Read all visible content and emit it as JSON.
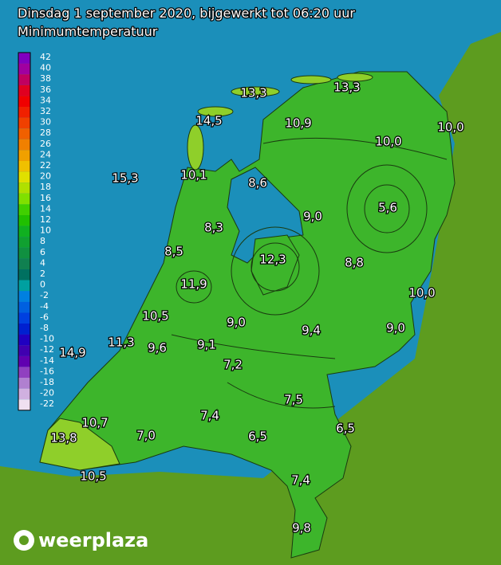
{
  "header": {
    "title": "Dinsdag 1 september 2020, bijgewerkt tot 06:20 uur",
    "subtitle": "Minimumtemperatuur"
  },
  "legend": {
    "labels": [
      "42",
      "40",
      "38",
      "36",
      "34",
      "32",
      "30",
      "28",
      "26",
      "24",
      "22",
      "20",
      "18",
      "16",
      "14",
      "12",
      "10",
      "8",
      "6",
      "4",
      "2",
      "0",
      "-2",
      "-4",
      "-6",
      "-8",
      "-10",
      "-12",
      "-14",
      "-16",
      "-18",
      "-20",
      "-22"
    ]
  },
  "stations": [
    "13,3",
    "13,3",
    "14,5",
    "10,9",
    "10,0",
    "10,0",
    "15,3",
    "10,1",
    "8,6",
    "9,0",
    "5,6",
    "8,3",
    "8,5",
    "12,3",
    "8,8",
    "11,9",
    "10,0",
    "10,5",
    "9,0",
    "9,4",
    "9,0",
    "11,3",
    "9,6",
    "9,1",
    "14,9",
    "7,2",
    "7,5",
    "7,4",
    "10,7",
    "6,5",
    "13,8",
    "7,0",
    "6,5",
    "7,4",
    "10,5",
    "9,8"
  ],
  "logo": "weerplaza"
}
